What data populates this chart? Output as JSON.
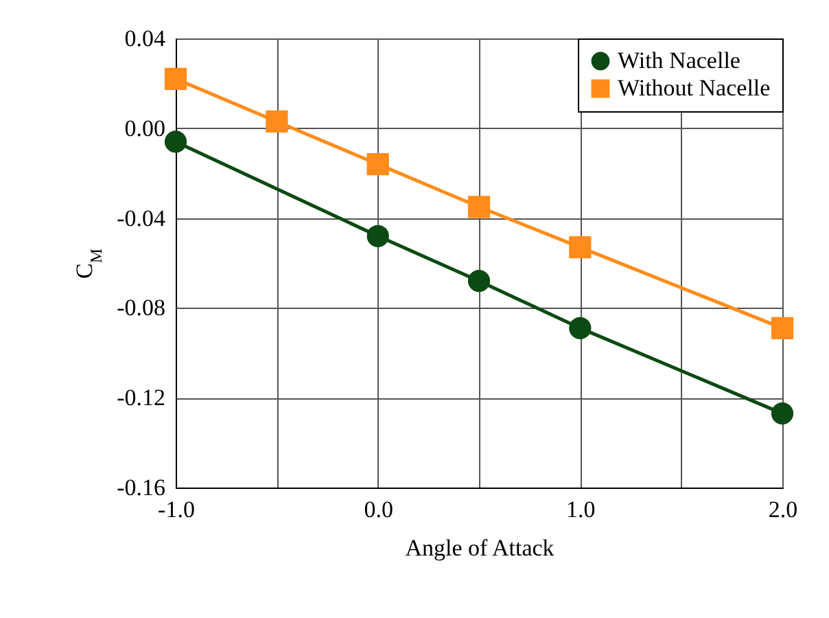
{
  "chart_data": {
    "type": "line",
    "xlabel": "Angle of Attack",
    "ylabel": "C$_{M}$",
    "series": [
      {
        "name": "With Nacelle",
        "color": "#0b4a12",
        "marker": "circle",
        "x": [
          -1.0,
          0.0,
          0.5,
          1.0,
          2.0
        ],
        "values": [
          -0.006,
          -0.048,
          -0.068,
          -0.089,
          -0.127
        ]
      },
      {
        "name": "Without Nacelle",
        "color": "#ff8c1a",
        "marker": "square",
        "x": [
          -1.0,
          -0.5,
          0.0,
          0.5,
          1.0,
          2.0
        ],
        "values": [
          0.022,
          0.003,
          -0.016,
          -0.035,
          -0.053,
          -0.089
        ]
      }
    ],
    "xlim": [
      -1.0,
      2.0
    ],
    "xticks": [
      {
        "value": -1.0,
        "label": "-1.0"
      },
      {
        "value": -0.5,
        "label": null
      },
      {
        "value": 0.0,
        "label": "0.0"
      },
      {
        "value": 0.5,
        "label": null
      },
      {
        "value": 1.0,
        "label": "1.0"
      },
      {
        "value": 1.5,
        "label": null
      },
      {
        "value": 2.0,
        "label": "2.0"
      }
    ],
    "ylim": [
      -0.16,
      0.04
    ],
    "yticks": [
      {
        "value": -0.16,
        "label": "-0.16"
      },
      {
        "value": -0.12,
        "label": "-0.12"
      },
      {
        "value": -0.08,
        "label": "-0.08"
      },
      {
        "value": -0.04,
        "label": "-0.04"
      },
      {
        "value": 0.0,
        "label": "0.00"
      },
      {
        "value": 0.04,
        "label": "0.04"
      }
    ],
    "grid": true,
    "legend": "top right",
    "line_style": "solid"
  }
}
